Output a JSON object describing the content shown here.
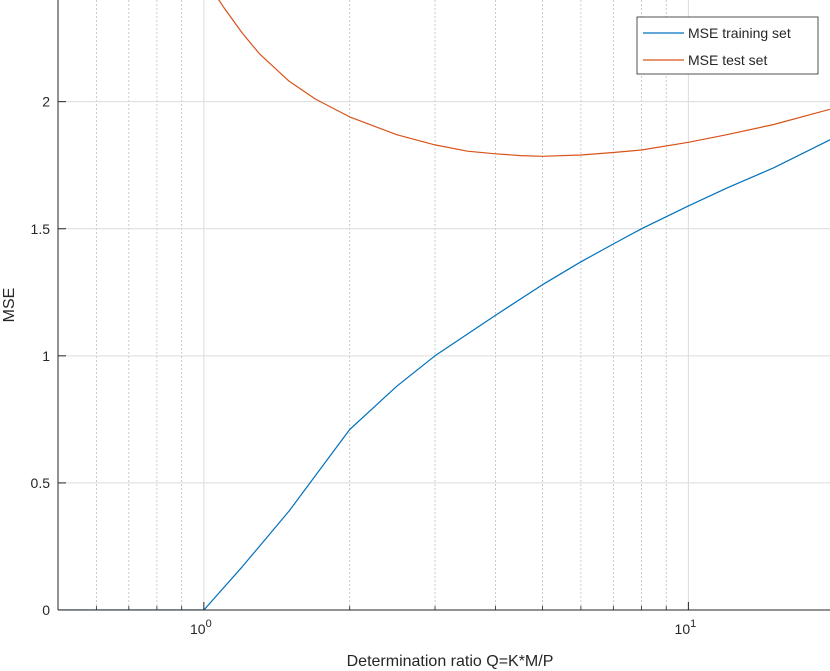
{
  "chart_data": {
    "type": "line",
    "title": "",
    "xlabel": "Determination ratio Q=K*M/P",
    "ylabel": "MSE",
    "xscale": "log",
    "xlim": [
      0.5,
      19.6
    ],
    "ylim": [
      0,
      2.4
    ],
    "grid": true,
    "legend_position": "top-right",
    "xticks": [
      {
        "value": 1,
        "base": "10",
        "exp": "0"
      },
      {
        "value": 10,
        "base": "10",
        "exp": "1"
      }
    ],
    "yticks": [
      {
        "value": 0,
        "label": "0"
      },
      {
        "value": 0.5,
        "label": "0.5"
      },
      {
        "value": 1,
        "label": "1"
      },
      {
        "value": 1.5,
        "label": "1.5"
      },
      {
        "value": 2,
        "label": "2"
      }
    ],
    "series": [
      {
        "name": "MSE training set",
        "color": "#0072BD",
        "x": [
          0.5,
          0.6,
          0.7,
          0.8,
          0.9,
          1.0,
          1.2,
          1.5,
          2,
          2.5,
          3,
          4,
          5,
          6,
          7,
          8,
          10,
          12,
          15,
          19.6
        ],
        "y": [
          0,
          0,
          0,
          0,
          0,
          0,
          0.17,
          0.39,
          0.71,
          0.88,
          1.0,
          1.16,
          1.28,
          1.37,
          1.44,
          1.5,
          1.59,
          1.66,
          1.74,
          1.85
        ]
      },
      {
        "name": "MSE test set",
        "color": "#D95319",
        "x": [
          1.04,
          1.1,
          1.2,
          1.3,
          1.5,
          1.7,
          2,
          2.5,
          3,
          3.5,
          4,
          4.5,
          5,
          6,
          7,
          8,
          10,
          12,
          15,
          19.6
        ],
        "y": [
          2.44,
          2.37,
          2.27,
          2.19,
          2.08,
          2.01,
          1.94,
          1.87,
          1.83,
          1.805,
          1.795,
          1.788,
          1.785,
          1.79,
          1.8,
          1.81,
          1.84,
          1.87,
          1.91,
          1.97
        ]
      }
    ]
  }
}
